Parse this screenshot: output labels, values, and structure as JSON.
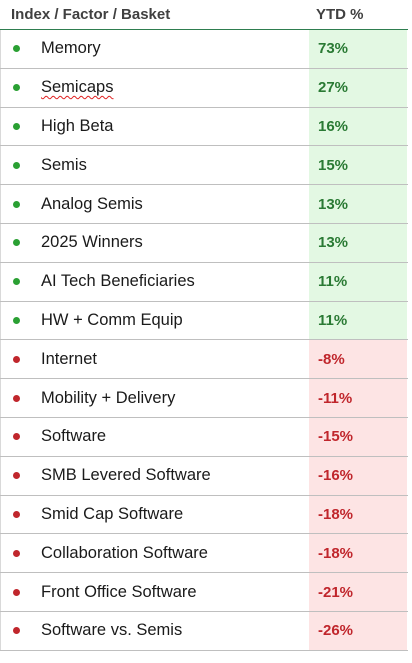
{
  "header": {
    "name_col": "Index / Factor / Basket",
    "ytd_col": "YTD %"
  },
  "colors": {
    "positive_text": "#2a7a34",
    "positive_bg": "#e3f8e3",
    "negative_text": "#c0262c",
    "negative_bg": "#fde4e4"
  },
  "rows": [
    {
      "name": "Memory",
      "ytd": "73%",
      "status": "positive"
    },
    {
      "name": "Semicaps",
      "ytd": "27%",
      "status": "positive"
    },
    {
      "name": "High Beta",
      "ytd": "16%",
      "status": "positive"
    },
    {
      "name": "Semis",
      "ytd": "15%",
      "status": "positive"
    },
    {
      "name": "Analog Semis",
      "ytd": "13%",
      "status": "positive"
    },
    {
      "name": "2025 Winners",
      "ytd": "13%",
      "status": "positive"
    },
    {
      "name": "AI Tech Beneficiaries",
      "ytd": "11%",
      "status": "positive"
    },
    {
      "name": "HW + Comm Equip",
      "ytd": "11%",
      "status": "positive"
    },
    {
      "name": "Internet",
      "ytd": "-8%",
      "status": "negative"
    },
    {
      "name": "Mobility + Delivery",
      "ytd": "-11%",
      "status": "negative"
    },
    {
      "name": "Software",
      "ytd": "-15%",
      "status": "negative"
    },
    {
      "name": "SMB Levered Software",
      "ytd": "-16%",
      "status": "negative"
    },
    {
      "name": "Smid Cap Software",
      "ytd": "-18%",
      "status": "negative"
    },
    {
      "name": "Collaboration Software",
      "ytd": "-18%",
      "status": "negative"
    },
    {
      "name": "Front Office Software",
      "ytd": "-21%",
      "status": "negative"
    },
    {
      "name": "Software vs. Semis",
      "ytd": "-26%",
      "status": "negative"
    }
  ]
}
